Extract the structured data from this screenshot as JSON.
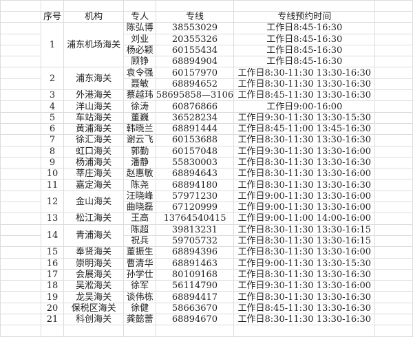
{
  "headers": {
    "seq": "序号",
    "org": "机构",
    "staff": "专人",
    "phone": "专线",
    "hours": "专线预约时间"
  },
  "rows": [
    {
      "seq": "1",
      "org": "浦东机场海关",
      "staff": [
        {
          "name": "陈弘博",
          "phone": "38553029",
          "hours": "工作日8:45-16:30"
        },
        {
          "name": "刘业",
          "phone": "20355326",
          "hours": "工作日8:45-16:30"
        },
        {
          "name": "杨必颖",
          "phone": "60155434",
          "hours": "工作日8:45-16:30"
        },
        {
          "name": "顾铮",
          "phone": "68894904",
          "hours": "工作日8:45-16:30"
        }
      ]
    },
    {
      "seq": "2",
      "org": "浦东海关",
      "staff": [
        {
          "name": "袁令强",
          "phone": "60157970",
          "hours": "工作日8:30-11:30 13:30-16:30"
        },
        {
          "name": "聂敏",
          "phone": "68894652",
          "hours": "工作日8:30-11:30 13:30-16:30"
        }
      ]
    },
    {
      "seq": "3",
      "org": "外港海关",
      "staff": [
        {
          "name": "蔡越玮",
          "phone": "58695858—3106",
          "hours": "工作日8:45-11:30 13:30-16:30"
        }
      ]
    },
    {
      "seq": "4",
      "org": "洋山海关",
      "staff": [
        {
          "name": "徐涛",
          "phone": "60876866",
          "hours": "工作日9:00-16:00"
        }
      ]
    },
    {
      "seq": "5",
      "org": "车站海关",
      "staff": [
        {
          "name": "董巍",
          "phone": "36528234",
          "hours": "工作日9:30-11:30 13:30-15:30"
        }
      ]
    },
    {
      "seq": "6",
      "org": "黄浦海关",
      "staff": [
        {
          "name": "韩晓兰",
          "phone": "68891444",
          "hours": "工作日8:45-11:00 13:45-16:30"
        }
      ]
    },
    {
      "seq": "7",
      "org": "徐汇海关",
      "staff": [
        {
          "name": "谢云飞",
          "phone": "60153688",
          "hours": "工作日8:30-11:30 13:30-16:30"
        }
      ]
    },
    {
      "seq": "8",
      "org": "虹口海关",
      "staff": [
        {
          "name": "郭勤",
          "phone": "60157048",
          "hours": "工作日9:30-11:30 13:30-16:00"
        }
      ]
    },
    {
      "seq": "9",
      "org": "杨浦海关",
      "staff": [
        {
          "name": "潘静",
          "phone": "55830003",
          "hours": "工作日8:30-11:30 13:30-16:30"
        }
      ]
    },
    {
      "seq": "10",
      "org": "莘庄海关",
      "staff": [
        {
          "name": "赵惠敏",
          "phone": "68894643",
          "hours": "工作日8:30-11:30 13:30-16:00"
        }
      ]
    },
    {
      "seq": "11",
      "org": "嘉定海关",
      "staff": [
        {
          "name": "陈尧",
          "phone": "68894180",
          "hours": "工作日8:30-11:30 13:30-16:30"
        }
      ]
    },
    {
      "seq": "12",
      "org": "金山海关",
      "staff": [
        {
          "name": "汪晓峰",
          "phone": "57971230",
          "hours": "工作日9:00-11:30 13:30-16:00"
        },
        {
          "name": "曲晓磊",
          "phone": "67120999",
          "hours": "工作日9:00-11:30 13:30-16:00"
        }
      ]
    },
    {
      "seq": "13",
      "org": "松江海关",
      "staff": [
        {
          "name": "王高",
          "phone": "13764540415",
          "hours": "工作日9:00-11:00 14:00-16:00"
        }
      ]
    },
    {
      "seq": "14",
      "org": "青浦海关",
      "staff": [
        {
          "name": "陈超",
          "phone": "39813231",
          "hours": "工作日8:30-11:30 13:30-16:15"
        },
        {
          "name": "祝兵",
          "phone": "59705732",
          "hours": "工作日8:30-11:30 13:30-16:15"
        }
      ]
    },
    {
      "seq": "15",
      "org": "奉贤海关",
      "staff": [
        {
          "name": "董振生",
          "phone": "68894396",
          "hours": "工作日8:30-11:30 13:30-16:00"
        }
      ]
    },
    {
      "seq": "16",
      "org": "崇明海关",
      "staff": [
        {
          "name": "曹清华",
          "phone": "68891463",
          "hours": "工作日9:00-11:30 13:30-15:30"
        }
      ]
    },
    {
      "seq": "17",
      "org": "会展海关",
      "staff": [
        {
          "name": "孙学仕",
          "phone": "80109168",
          "hours": "工作日8:30-11:30 13:30-16:30"
        }
      ]
    },
    {
      "seq": "18",
      "org": "吴淞海关",
      "staff": [
        {
          "name": "徐军",
          "phone": "56114790",
          "hours": "工作日9:30-11:30 13:30-16:00"
        }
      ]
    },
    {
      "seq": "19",
      "org": "龙吴海关",
      "staff": [
        {
          "name": "谈伟栋",
          "phone": "68894417",
          "hours": "工作日8:30-11:30 13:30-16:30"
        }
      ]
    },
    {
      "seq": "20",
      "org": "保税区海关",
      "staff": [
        {
          "name": "徐健",
          "phone": "58663670",
          "hours": "工作日8:45-11:30 13:30-16:30"
        }
      ]
    },
    {
      "seq": "21",
      "org": "科创海关",
      "staff": [
        {
          "name": "龚懿蕾",
          "phone": "68894670",
          "hours": "工作日8:30-11:30 13:30-16:30"
        }
      ]
    }
  ]
}
